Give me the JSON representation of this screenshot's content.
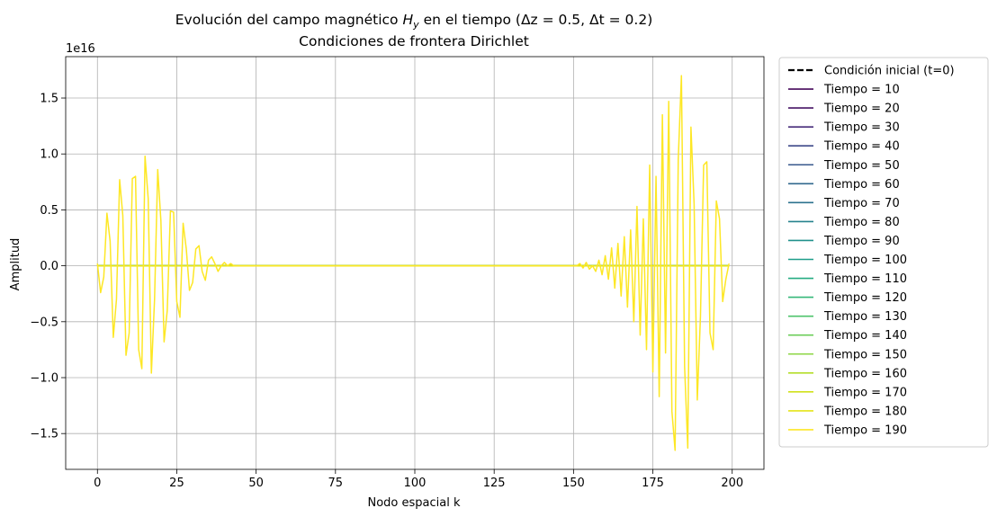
{
  "chart_data": {
    "type": "line",
    "title_line1": "Evolución del campo magnético H_y en el tiempo (Δz = 0.5, Δt = 0.2)",
    "title_line1_parts": {
      "before": "Evolución del campo magnético ",
      "var": "H",
      "sub": "y",
      "after": " en el tiempo (Δz = 0.5, Δt = 0.2)"
    },
    "title_line2": "Condiciones de frontera Dirichlet",
    "xlabel": "Nodo espacial k",
    "ylabel": "Amplitud",
    "y_offset_label": "1e16",
    "xlim": [
      -10,
      210
    ],
    "ylim": [
      -1.82,
      1.87
    ],
    "x_ticks": [
      0,
      25,
      50,
      75,
      100,
      125,
      150,
      175,
      200
    ],
    "x_tick_labels": [
      "0",
      "25",
      "50",
      "75",
      "100",
      "125",
      "150",
      "175",
      "200"
    ],
    "y_ticks": [
      -1.5,
      -1.0,
      -0.5,
      0.0,
      0.5,
      1.0,
      1.5
    ],
    "y_tick_labels": [
      "−1.5",
      "−1.0",
      "−0.5",
      "0.0",
      "0.5",
      "1.0",
      "1.5"
    ],
    "grid": true,
    "legend_placement": "outside-right",
    "initial_condition": {
      "name": "Condición inicial (t=0)",
      "color": "#000000",
      "style": "dashed",
      "x": [
        0,
        199
      ],
      "y": [
        0,
        0
      ]
    },
    "series": [
      {
        "name": "Tiempo = 10",
        "color": "#46085c"
      },
      {
        "name": "Tiempo = 20",
        "color": "#471365"
      },
      {
        "name": "Tiempo = 30",
        "color": "#472c7a"
      },
      {
        "name": "Tiempo = 40",
        "color": "#3e4989"
      },
      {
        "name": "Tiempo = 50",
        "color": "#38598c"
      },
      {
        "name": "Tiempo = 60",
        "color": "#31688e"
      },
      {
        "name": "Tiempo = 70",
        "color": "#2c728e"
      },
      {
        "name": "Tiempo = 80",
        "color": "#26828e"
      },
      {
        "name": "Tiempo = 90",
        "color": "#21918c"
      },
      {
        "name": "Tiempo = 100",
        "color": "#1f9e89"
      },
      {
        "name": "Tiempo = 110",
        "color": "#25ab82"
      },
      {
        "name": "Tiempo = 120",
        "color": "#35b779"
      },
      {
        "name": "Tiempo = 130",
        "color": "#4ec36b"
      },
      {
        "name": "Tiempo = 140",
        "color": "#6ccd5a"
      },
      {
        "name": "Tiempo = 150",
        "color": "#8ed645"
      },
      {
        "name": "Tiempo = 160",
        "color": "#b5de2b"
      },
      {
        "name": "Tiempo = 170",
        "color": "#d0e11c"
      },
      {
        "name": "Tiempo = 180",
        "color": "#e5e419"
      },
      {
        "name": "Tiempo = 190",
        "color": "#fde725",
        "points": [
          [
            0,
            0.02
          ],
          [
            1,
            -0.24
          ],
          [
            2,
            -0.1
          ],
          [
            3,
            0.47
          ],
          [
            4,
            0.22
          ],
          [
            5,
            -0.64
          ],
          [
            6,
            -0.3
          ],
          [
            7,
            0.77
          ],
          [
            8,
            0.45
          ],
          [
            9,
            -0.8
          ],
          [
            10,
            -0.6
          ],
          [
            11,
            0.78
          ],
          [
            12,
            0.8
          ],
          [
            13,
            -0.75
          ],
          [
            14,
            -0.92
          ],
          [
            15,
            0.98
          ],
          [
            16,
            0.6
          ],
          [
            17,
            -0.96
          ],
          [
            18,
            -0.3
          ],
          [
            19,
            0.86
          ],
          [
            20,
            0.4
          ],
          [
            21,
            -0.68
          ],
          [
            22,
            -0.4
          ],
          [
            23,
            0.49
          ],
          [
            24,
            0.48
          ],
          [
            25,
            -0.32
          ],
          [
            26,
            -0.46
          ],
          [
            27,
            0.38
          ],
          [
            28,
            0.15
          ],
          [
            29,
            -0.22
          ],
          [
            30,
            -0.15
          ],
          [
            31,
            0.15
          ],
          [
            32,
            0.18
          ],
          [
            33,
            -0.05
          ],
          [
            34,
            -0.13
          ],
          [
            35,
            0.05
          ],
          [
            36,
            0.08
          ],
          [
            37,
            0.02
          ],
          [
            38,
            -0.05
          ],
          [
            39,
            0.0
          ],
          [
            40,
            0.03
          ],
          [
            41,
            0.0
          ],
          [
            42,
            0.02
          ],
          [
            43,
            0.0
          ],
          [
            44,
            0.0
          ],
          [
            45,
            0.0
          ],
          [
            46,
            0.0
          ],
          [
            47,
            0.0
          ],
          [
            50,
            0.0
          ],
          [
            100,
            0.0
          ],
          [
            150,
            0.0
          ],
          [
            151,
            0.0
          ],
          [
            152,
            0.02
          ],
          [
            153,
            -0.02
          ],
          [
            154,
            0.03
          ],
          [
            155,
            -0.03
          ],
          [
            156,
            0.0
          ],
          [
            157,
            -0.05
          ],
          [
            158,
            0.05
          ],
          [
            159,
            -0.08
          ],
          [
            160,
            0.09
          ],
          [
            161,
            -0.12
          ],
          [
            162,
            0.16
          ],
          [
            163,
            -0.2
          ],
          [
            164,
            0.2
          ],
          [
            165,
            -0.27
          ],
          [
            166,
            0.26
          ],
          [
            167,
            -0.37
          ],
          [
            168,
            0.32
          ],
          [
            169,
            -0.5
          ],
          [
            170,
            0.53
          ],
          [
            171,
            -0.62
          ],
          [
            172,
            0.42
          ],
          [
            173,
            -0.75
          ],
          [
            174,
            0.9
          ],
          [
            175,
            -0.95
          ],
          [
            176,
            0.8
          ],
          [
            177,
            -1.17
          ],
          [
            178,
            1.35
          ],
          [
            179,
            -0.78
          ],
          [
            180,
            1.47
          ],
          [
            181,
            -1.3
          ],
          [
            182,
            -1.65
          ],
          [
            183,
            0.95
          ],
          [
            184,
            1.7
          ],
          [
            185,
            -0.9
          ],
          [
            186,
            -1.63
          ],
          [
            187,
            1.24
          ],
          [
            188,
            0.55
          ],
          [
            189,
            -1.2
          ],
          [
            190,
            -0.45
          ],
          [
            191,
            0.9
          ],
          [
            192,
            0.93
          ],
          [
            193,
            -0.6
          ],
          [
            194,
            -0.75
          ],
          [
            195,
            0.58
          ],
          [
            196,
            0.42
          ],
          [
            197,
            -0.32
          ],
          [
            198,
            -0.12
          ],
          [
            199,
            0.02
          ]
        ]
      }
    ]
  }
}
